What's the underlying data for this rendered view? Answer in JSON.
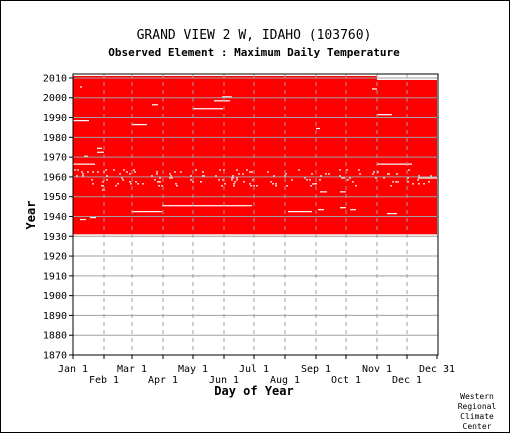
{
  "chart_data": {
    "type": "heatmap",
    "title": "GRAND VIEW 2 W, IDAHO    (103760)",
    "subtitle": "Observed Element : Maximum Daily Temperature",
    "xlabel": "Day of Year",
    "ylabel": "Year",
    "ylim": [
      1870,
      2012
    ],
    "xlim": [
      1,
      366
    ],
    "grid": true,
    "y_ticks": [
      1870,
      1880,
      1890,
      1900,
      1910,
      1920,
      1930,
      1940,
      1950,
      1960,
      1970,
      1980,
      1990,
      2000,
      2010
    ],
    "x_ticks_row1": [
      {
        "label": "Jan 1",
        "day": 1
      },
      {
        "label": "Mar 1",
        "day": 60
      },
      {
        "label": "May 1",
        "day": 121
      },
      {
        "label": "Jul 1",
        "day": 182
      },
      {
        "label": "Sep 1",
        "day": 244
      },
      {
        "label": "Nov 1",
        "day": 305
      },
      {
        "label": "Dec 31",
        "day": 365
      }
    ],
    "x_ticks_row2": [
      {
        "label": "Feb 1",
        "day": 32
      },
      {
        "label": "Apr 1",
        "day": 91
      },
      {
        "label": "Jun 1",
        "day": 152
      },
      {
        "label": "Aug 1",
        "day": 213
      },
      {
        "label": "Oct 1",
        "day": 274
      },
      {
        "label": "Dec 1",
        "day": 335
      }
    ],
    "data_color": "#ff0000",
    "data_blocks": [
      {
        "year_start": 1931,
        "year_end": 2008,
        "day_start": 1,
        "day_end": 365
      },
      {
        "year_start": 2008,
        "year_end": 2010,
        "day_start": 1,
        "day_end": 305
      }
    ],
    "gaps": [
      {
        "year": 1938,
        "day_start": 8,
        "day_end": 14
      },
      {
        "year": 1939,
        "day_start": 18,
        "day_end": 24
      },
      {
        "year": 1941,
        "day_start": 315,
        "day_end": 325
      },
      {
        "year": 1942,
        "day_start": 60,
        "day_end": 90
      },
      {
        "year": 1942,
        "day_start": 216,
        "day_end": 240
      },
      {
        "year": 1943,
        "day_start": 246,
        "day_end": 252
      },
      {
        "year": 1943,
        "day_start": 278,
        "day_end": 284
      },
      {
        "year": 1944,
        "day_start": 268,
        "day_end": 274
      },
      {
        "year": 1945,
        "day_start": 90,
        "day_end": 180
      },
      {
        "year": 1952,
        "day_start": 248,
        "day_end": 255
      },
      {
        "year": 1952,
        "day_start": 268,
        "day_end": 274
      },
      {
        "year": 1953,
        "day_start": 30,
        "day_end": 33
      },
      {
        "year": 1956,
        "day_start": 240,
        "day_end": 244
      },
      {
        "year": 1957,
        "day_start": 323,
        "day_end": 327
      },
      {
        "year": 1959,
        "day_start": 346,
        "day_end": 366
      },
      {
        "year": 1966,
        "day_start": 1,
        "day_end": 23
      },
      {
        "year": 1966,
        "day_start": 305,
        "day_end": 340
      },
      {
        "year": 1970,
        "day_start": 12,
        "day_end": 16
      },
      {
        "year": 1972,
        "day_start": 25,
        "day_end": 32
      },
      {
        "year": 1974,
        "day_start": 25,
        "day_end": 30
      },
      {
        "year": 1984,
        "day_start": 244,
        "day_end": 248
      },
      {
        "year": 1986,
        "day_start": 60,
        "day_end": 75
      },
      {
        "year": 1988,
        "day_start": 1,
        "day_end": 17
      },
      {
        "year": 1991,
        "day_start": 305,
        "day_end": 320
      },
      {
        "year": 1994,
        "day_start": 121,
        "day_end": 151
      },
      {
        "year": 1996,
        "day_start": 80,
        "day_end": 86
      },
      {
        "year": 1998,
        "day_start": 142,
        "day_end": 158
      },
      {
        "year": 2000,
        "day_start": 150,
        "day_end": 160
      },
      {
        "year": 2004,
        "day_start": 300,
        "day_end": 305
      },
      {
        "year": 2005,
        "day_start": 8,
        "day_end": 10
      },
      {
        "year": 2009,
        "day_start": 305,
        "day_end": 365
      }
    ],
    "speckle_years": [
      1955,
      1956,
      1957,
      1958,
      1959,
      1960,
      1961,
      1962,
      1963
    ]
  },
  "credit": [
    "Western",
    "Regional",
    "Climate",
    "Center"
  ]
}
